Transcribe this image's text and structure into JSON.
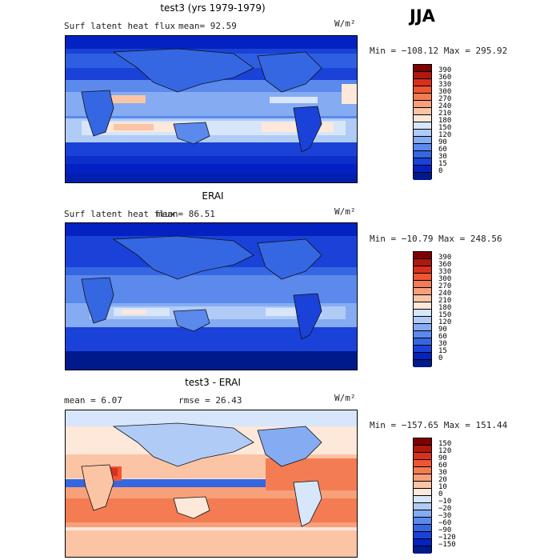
{
  "season": "JJA",
  "panels": [
    {
      "title": "test3 (yrs 1979-1979)",
      "variable": "Surf latent heat flux",
      "stat1": "mean=  92.59",
      "stat2": "",
      "units": "W/m²",
      "minmax": "Min = −108.12 Max = 295.92",
      "colorbar_labels": [
        "390",
        "360",
        "330",
        "300",
        "270",
        "240",
        "210",
        "180",
        "150",
        "120",
        "90",
        "60",
        "30",
        "15",
        "0"
      ],
      "colors": [
        "#7f0000",
        "#b0180f",
        "#d9301e",
        "#ee5533",
        "#f47c53",
        "#f8a07a",
        "#fbc5a5",
        "#fde8da",
        "#d7e6fa",
        "#b0cbf6",
        "#85abf2",
        "#5b89ec",
        "#3567e3",
        "#1a42d8",
        "#0422c2",
        "#001a8c"
      ]
    },
    {
      "title": "ERAI",
      "variable": "Surf latent heat flux",
      "stat1": "mean=  86.51",
      "stat2": "",
      "units": "W/m²",
      "minmax": "Min = −10.79 Max = 248.56",
      "colorbar_labels": [
        "390",
        "360",
        "330",
        "300",
        "270",
        "240",
        "210",
        "180",
        "150",
        "120",
        "90",
        "60",
        "30",
        "15",
        "0"
      ],
      "colors": [
        "#7f0000",
        "#b0180f",
        "#d9301e",
        "#ee5533",
        "#f47c53",
        "#f8a07a",
        "#fbc5a5",
        "#fde8da",
        "#d7e6fa",
        "#b0cbf6",
        "#85abf2",
        "#5b89ec",
        "#3567e3",
        "#1a42d8",
        "#0422c2",
        "#001a8c"
      ]
    },
    {
      "title": "test3 - ERAI",
      "variable": "",
      "stat1": "mean =    6.07",
      "stat2": "rmse =  26.43",
      "units": "W/m²",
      "minmax": "Min = −157.65 Max = 151.44",
      "colorbar_labels": [
        "150",
        "120",
        "90",
        "60",
        "30",
        "20",
        "10",
        "0",
        "−10",
        "−20",
        "−30",
        "−60",
        "−90",
        "−120",
        "−150"
      ],
      "colors": [
        "#7f0000",
        "#b0180f",
        "#d9301e",
        "#ee5533",
        "#f47c53",
        "#f8a07a",
        "#fbc5a5",
        "#fde8da",
        "#d7e6fa",
        "#b0cbf6",
        "#85abf2",
        "#5b89ec",
        "#3567e3",
        "#1a42d8",
        "#0422c2",
        "#001a8c"
      ]
    }
  ]
}
